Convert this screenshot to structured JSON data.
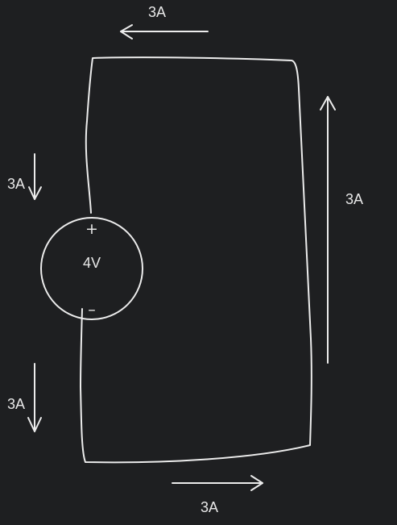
{
  "colors": {
    "background": "#1e1f21",
    "stroke": "#ececec",
    "text": "#e8e8e8"
  },
  "source": {
    "voltage": "4V",
    "plus": "+",
    "minus": "–"
  },
  "currents": {
    "top": "3A",
    "right": "3A",
    "bottom": "3A",
    "left_upper": "3A",
    "left_lower": "3A"
  }
}
